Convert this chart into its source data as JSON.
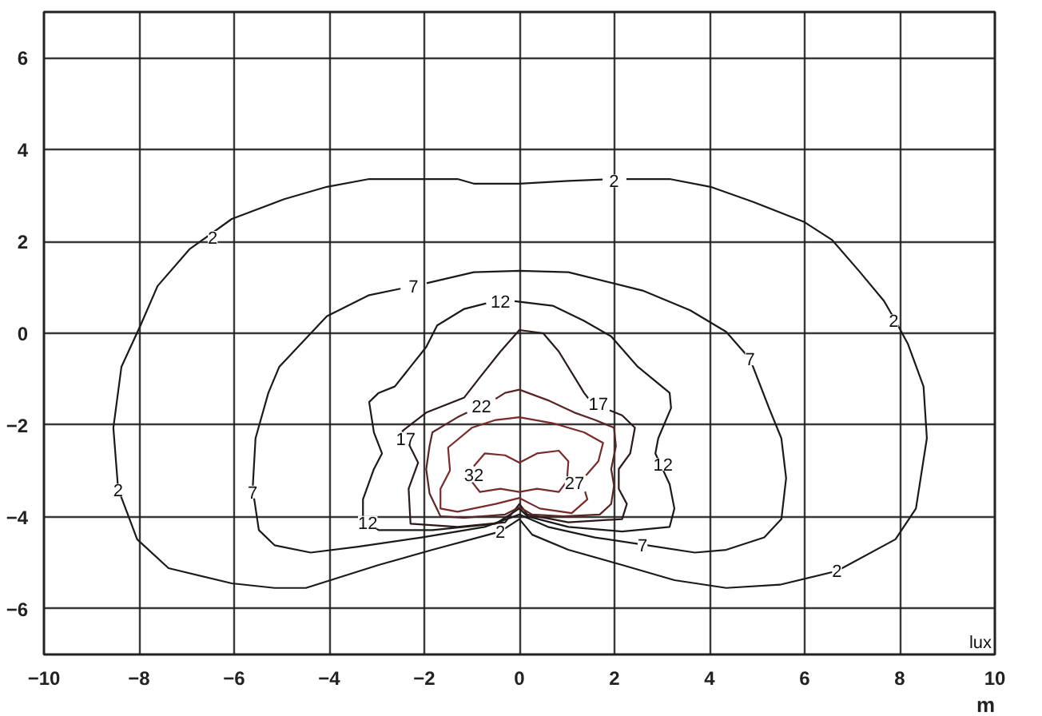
{
  "chart_data": {
    "type": "line",
    "xlabel": "m",
    "xlim": [
      -10,
      10
    ],
    "ylim": [
      -7,
      7
    ],
    "xticks": [
      -10,
      -8,
      -6,
      -4,
      -2,
      0,
      2,
      4,
      6,
      8,
      10
    ],
    "yticks": [
      -6,
      -4,
      -2,
      0,
      2,
      4,
      6
    ],
    "grid": true,
    "line_style": "solid",
    "marker": "none",
    "series": [
      {
        "color": "#1a1a1a",
        "x": [
          2.25,
          3.16,
          4.02,
          4.92,
          5.98,
          6.58,
          7.14,
          7.67,
          7.91,
          8.17,
          8.5,
          8.57,
          8.34,
          7.91,
          6.68,
          5.48,
          4.35,
          3.26,
          2.16,
          1.03,
          0.27,
          0,
          -0.4,
          -1.83,
          -2.96,
          -4.49,
          -5.15,
          -6.05,
          -7.38,
          -8.04,
          -8.44,
          -8.54,
          -8.37,
          -7.97,
          -7.61,
          -6.94,
          -6.05,
          -4.95,
          -4.05,
          -3.16,
          -1.3,
          -0.96,
          0,
          1.03,
          1.75
        ],
        "values": [
          3.36,
          3.36,
          3.19,
          2.86,
          2.43,
          2.03,
          1.36,
          0.7,
          0.27,
          -0.23,
          -1.16,
          -2.29,
          -3.82,
          -4.49,
          -5.18,
          -5.48,
          -5.55,
          -5.38,
          -5.05,
          -4.72,
          -4.39,
          -4.05,
          -4.32,
          -4.72,
          -5.05,
          -5.55,
          -5.55,
          -5.45,
          -5.12,
          -4.49,
          -3.39,
          -2.06,
          -0.73,
          0.17,
          1.03,
          1.83,
          2.49,
          2.92,
          3.19,
          3.36,
          3.36,
          3.26,
          3.26,
          3.32,
          3.35
        ]
      },
      {
        "color": "#1a1a1a",
        "x": [
          -1.95,
          -0.96,
          0,
          1.03,
          2.59,
          3.59,
          4.35,
          4.85,
          5.25,
          5.51,
          5.61,
          5.51,
          5.15,
          4.35,
          3.69,
          2.69,
          1.59,
          0.6,
          0,
          -0.73,
          -2.06,
          -3.39,
          -4.39,
          -5.15,
          -5.48,
          -5.61,
          -5.55,
          -5.28,
          -5.05,
          -4.45,
          -4.05,
          -3.16,
          -2.5
        ],
        "values": [
          1.09,
          1.33,
          1.36,
          1.33,
          0.93,
          0.5,
          0.03,
          -0.56,
          -1.63,
          -2.29,
          -3.16,
          -4.05,
          -4.45,
          -4.72,
          -4.78,
          -4.62,
          -4.45,
          -4.22,
          -3.95,
          -4.22,
          -4.45,
          -4.65,
          -4.78,
          -4.62,
          -4.29,
          -3.39,
          -2.29,
          -1.3,
          -0.73,
          -0.07,
          0.37,
          0.83,
          0.97
        ]
      },
      {
        "color": "#1a1a1a",
        "x": [
          -0.1,
          0.7,
          1.36,
          1.93,
          2.49,
          3.16,
          3.19,
          2.92,
          2.86,
          3.16,
          3.26,
          3.16,
          2.16,
          1.03,
          0.17,
          0,
          -0.5,
          -1.83,
          -2.96,
          -3.29,
          -3.29,
          -3.06,
          -2.89,
          -3.06,
          -3.16,
          -2.96,
          -2.62,
          -2.29,
          -1.96,
          -1.73,
          -1.16,
          -0.7
        ],
        "values": [
          0.7,
          0.6,
          0.27,
          -0.07,
          -0.73,
          -1.3,
          -1.63,
          -2.29,
          -2.62,
          -3.29,
          -3.82,
          -4.22,
          -4.32,
          -4.22,
          -3.99,
          -3.82,
          -4.15,
          -4.29,
          -4.29,
          -4.05,
          -3.62,
          -2.96,
          -2.62,
          -2.16,
          -1.5,
          -1.3,
          -1.16,
          -0.73,
          -0.3,
          0.17,
          0.53,
          0.65
        ]
      },
      {
        "color": "#2a1a1a",
        "x": [
          1.9,
          2.16,
          2.43,
          2.33,
          2.09,
          2.09,
          2.26,
          2.16,
          1.03,
          0.17,
          0,
          -0.3,
          -1.3,
          -2.29,
          -2.33,
          -2.13,
          -2.29,
          -2.46,
          -1.96,
          -1.16,
          -0.83,
          -0.4,
          0,
          0.5,
          0.83,
          1.36,
          1.45
        ],
        "values": [
          -1.68,
          -1.79,
          -2.06,
          -2.62,
          -2.96,
          -3.39,
          -3.72,
          -4.05,
          -4.12,
          -3.95,
          -3.72,
          -4.12,
          -4.22,
          -4.15,
          -3.39,
          -2.82,
          -2.49,
          -2.13,
          -1.73,
          -1.4,
          -0.96,
          -0.4,
          0.07,
          0,
          -0.4,
          -1.3,
          -1.42
        ]
      },
      {
        "color": "#5a2525",
        "x": [
          -0.5,
          -0.3,
          0,
          0.6,
          1.16,
          1.59,
          1.99,
          2.03,
          1.93,
          1.99,
          1.93,
          1.69,
          0.93,
          0.27,
          0,
          -0.3,
          -1.16,
          -1.66,
          -1.89,
          -1.96,
          -1.89,
          -1.83,
          -1.3,
          -1.1
        ],
        "values": [
          -1.43,
          -1.3,
          -1.23,
          -1.46,
          -1.73,
          -1.89,
          -2.06,
          -2.46,
          -2.96,
          -3.32,
          -3.72,
          -3.95,
          -3.99,
          -3.95,
          -3.79,
          -3.95,
          -4.02,
          -3.99,
          -3.49,
          -2.96,
          -2.46,
          -2.16,
          -1.83,
          -1.73
        ]
      },
      {
        "color": "#7a2a2a",
        "x": [
          1.38,
          1.43,
          1.1,
          0.43,
          0,
          -0.5,
          -1.3,
          -1.66,
          -1.66,
          -1.46,
          -1.5,
          -1,
          -0.5,
          0,
          0.7,
          1.36,
          1.76,
          1.66,
          1.4
        ],
        "values": [
          -3.45,
          -3.62,
          -3.92,
          -3.82,
          -3.59,
          -3.72,
          -3.89,
          -3.82,
          -3.39,
          -2.99,
          -2.49,
          -2.06,
          -1.89,
          -1.83,
          -1.96,
          -2.16,
          -2.39,
          -2.79,
          -3.1
        ]
      },
      {
        "color": "#7a2a2a",
        "x": [
          -0.96,
          -0.73,
          -0.3,
          0,
          0.37,
          0.83,
          1.03,
          1,
          0.83,
          0.37,
          0,
          -0.4,
          -0.83,
          -0.99
        ],
        "values": [
          -2.9,
          -2.62,
          -2.66,
          -2.82,
          -2.62,
          -2.56,
          -2.79,
          -3.22,
          -3.46,
          -3.39,
          -3.46,
          -3.39,
          -3.46,
          -3.25
        ]
      }
    ],
    "annotations": [
      {
        "text": "2",
        "x": 1.99,
        "y": 3.32
      },
      {
        "text": "2",
        "x": -6.45,
        "y": 2.09
      },
      {
        "text": "2",
        "x": 7.87,
        "y": 0.27
      },
      {
        "text": "2",
        "x": -8.44,
        "y": -3.42
      },
      {
        "text": "2",
        "x": 6.68,
        "y": -5.18
      },
      {
        "text": "2",
        "x": -0.4,
        "y": -4.32
      },
      {
        "text": "7",
        "x": -2.23,
        "y": 1.03
      },
      {
        "text": "7",
        "x": 4.85,
        "y": -0.56
      },
      {
        "text": "7",
        "x": -5.61,
        "y": -3.46
      },
      {
        "text": "7",
        "x": 2.59,
        "y": -4.62
      },
      {
        "text": "12",
        "x": -0.4,
        "y": 0.7
      },
      {
        "text": "12",
        "x": 3.02,
        "y": -2.86
      },
      {
        "text": "12",
        "x": -3.19,
        "y": -4.12
      },
      {
        "text": "17",
        "x": -2.39,
        "y": -2.29
      },
      {
        "text": "17",
        "x": 1.66,
        "y": -1.53
      },
      {
        "text": "22",
        "x": -0.8,
        "y": -1.59
      },
      {
        "text": "27",
        "x": 1.16,
        "y": -3.26
      },
      {
        "text": "32",
        "x": -0.96,
        "y": -3.09
      },
      "lux"
    ]
  }
}
